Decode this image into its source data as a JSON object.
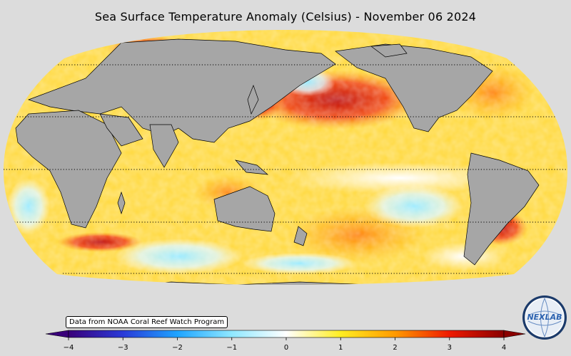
{
  "title": "Sea Surface Temperature Anomaly (Celsius) - November 06 2024",
  "source_note": "Data from NOAA Coral Reef Watch Program",
  "logo": {
    "text": "NEXLAB",
    "icon": "nexlab-globe-logo"
  },
  "colorbar": {
    "min": -4,
    "max": 4,
    "ticks": [
      "−4",
      "−3",
      "−2",
      "−1",
      "0",
      "1",
      "2",
      "3",
      "4"
    ],
    "tick_values": [
      -4,
      -3,
      -2,
      -1,
      0,
      1,
      2,
      3,
      4
    ],
    "colors": [
      "#3a007a",
      "#2a3ad8",
      "#1fa4ff",
      "#8fe8ff",
      "#ffffff",
      "#ffee22",
      "#ff9a00",
      "#ee1a00",
      "#8a0000"
    ]
  },
  "map": {
    "projection": "robinson",
    "ocean_base_color": "#ffdc3c",
    "land_color": "#a6a6a6",
    "background": "#dcdcdc",
    "gridlines": "dotted-latitude"
  }
}
